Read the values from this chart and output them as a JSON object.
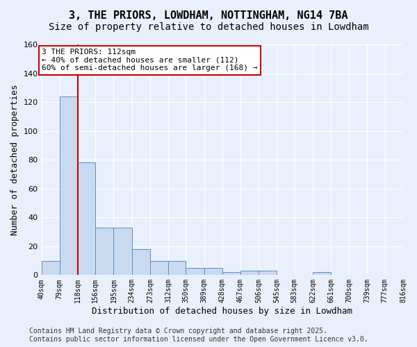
{
  "title": "3, THE PRIORS, LOWDHAM, NOTTINGHAM, NG14 7BA",
  "subtitle": "Size of property relative to detached houses in Lowdham",
  "xlabel": "Distribution of detached houses by size in Lowdham",
  "ylabel": "Number of detached properties",
  "bar_edges": [
    40,
    79,
    118,
    156,
    195,
    234,
    273,
    312,
    350,
    389,
    428,
    467,
    506,
    545,
    583,
    622,
    661,
    700,
    739,
    777,
    816
  ],
  "bar_heights": [
    10,
    124,
    78,
    33,
    33,
    18,
    10,
    10,
    5,
    5,
    2,
    3,
    3,
    0,
    0,
    2,
    0,
    0,
    0,
    0
  ],
  "bar_color": "#c9d9f0",
  "bar_edge_color": "#5a8fc4",
  "red_line_x": 118,
  "annotation_text": "3 THE PRIORS: 112sqm\n← 40% of detached houses are smaller (112)\n60% of semi-detached houses are larger (168) →",
  "annotation_box_color": "#ffffff",
  "annotation_box_edge": "#cc0000",
  "tick_labels": [
    "40sqm",
    "79sqm",
    "118sqm",
    "156sqm",
    "195sqm",
    "234sqm",
    "273sqm",
    "312sqm",
    "350sqm",
    "389sqm",
    "428sqm",
    "467sqm",
    "506sqm",
    "545sqm",
    "583sqm",
    "622sqm",
    "661sqm",
    "700sqm",
    "739sqm",
    "777sqm",
    "816sqm"
  ],
  "ylim": [
    0,
    160
  ],
  "yticks": [
    0,
    20,
    40,
    60,
    80,
    100,
    120,
    140,
    160
  ],
  "background_color": "#eaf0fb",
  "plot_bg_color": "#eaf0fb",
  "grid_color": "#ffffff",
  "footer_line1": "Contains HM Land Registry data © Crown copyright and database right 2025.",
  "footer_line2": "Contains public sector information licensed under the Open Government Licence v3.0.",
  "title_fontsize": 11,
  "subtitle_fontsize": 10,
  "axis_label_fontsize": 9,
  "tick_fontsize": 7,
  "annotation_fontsize": 8,
  "footer_fontsize": 7
}
